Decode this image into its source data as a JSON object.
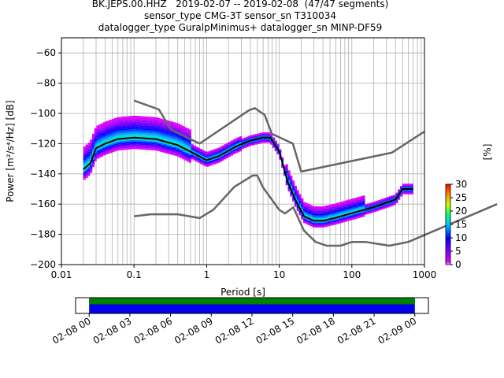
{
  "header": {
    "line1": "BK.JEPS.00.HHZ   2019-02-07 -- 2019-02-08  (47/47 segments)",
    "line2": "sensor_type CMG-3T sensor_sn T310034",
    "line3": "datalogger_type GuralpMinimus+ datalogger_sn MINP-DF59"
  },
  "chart_data": [
    {
      "type": "heatmap",
      "xlabel": "Period [s]",
      "ylabel": "Power [m²/s⁴/Hz] [dB]",
      "x_scale": "log",
      "xlim": [
        0.01,
        1000
      ],
      "ylim": [
        -200,
        -50
      ],
      "xticks": [
        0.01,
        0.1,
        1,
        10,
        100,
        1000
      ],
      "xtick_labels": [
        "0.01",
        "0.1",
        "1",
        "10",
        "100",
        "1000"
      ],
      "yticks": [
        -200,
        -180,
        -160,
        -140,
        -120,
        -100,
        -80,
        -60
      ],
      "ytick_labels": [
        "−200",
        "−180",
        "−160",
        "−140",
        "−120",
        "−100",
        "−80",
        "−60"
      ],
      "grid": true,
      "colorbar": {
        "label": "[%]",
        "range": [
          0,
          30
        ],
        "ticks": [
          0,
          5,
          10,
          15,
          20,
          25,
          30
        ],
        "tick_labels": [
          "0",
          "5",
          "10",
          "15",
          "20",
          "25",
          "30"
        ]
      },
      "series": [
        {
          "kind": "mean",
          "color": "#000000",
          "x": [
            0.02,
            0.025,
            0.03,
            0.04,
            0.06,
            0.1,
            0.2,
            0.4,
            0.7,
            1.0,
            1.5,
            2.5,
            4,
            6,
            7.5,
            10,
            13,
            17,
            22,
            30,
            40,
            60,
            100,
            200,
            400,
            500,
            700
          ],
          "y": [
            -137,
            -133,
            -123,
            -120,
            -117,
            -116,
            -117,
            -121,
            -127,
            -131,
            -128,
            -122,
            -118,
            -116,
            -116,
            -125,
            -145,
            -158,
            -168,
            -171,
            -171,
            -169,
            -166,
            -162,
            -157,
            -150,
            -150
          ]
        },
        {
          "kind": "noise-model-high",
          "color": "#666666",
          "x": [
            0.1,
            0.22,
            0.32,
            0.8,
            3.8,
            4.6,
            6.3,
            7.9,
            15.4,
            20,
            354.8,
            1000
          ],
          "y": [
            -91.5,
            -97.4,
            -110.5,
            -120,
            -98,
            -96.5,
            -101,
            -113.5,
            -120,
            -138.5,
            -126,
            -112
          ]
        },
        {
          "kind": "noise-model-low",
          "color": "#666666",
          "x": [
            0.1,
            0.17,
            0.4,
            0.8,
            1.24,
            2.4,
            4.3,
            5.0,
            6.0,
            10.0,
            12.0,
            15.6,
            21.9,
            31.6,
            45,
            70,
            101,
            154,
            328,
            600,
            10000
          ],
          "y": [
            -168,
            -166.7,
            -166.7,
            -169.2,
            -163.7,
            -148.6,
            -141.1,
            -141.1,
            -149,
            -163.8,
            -166.2,
            -162.1,
            -177.5,
            -185,
            -187.5,
            -187.5,
            -185,
            -185,
            -187.5,
            -185,
            -160
          ]
        }
      ]
    },
    {
      "type": "bar",
      "description_key": "data-coverage",
      "xlim": [
        "2019-02-07T23:00",
        "2019-02-09T01:00"
      ],
      "xticks": [
        "02-08 00",
        "02-08 03",
        "02-08 06",
        "02-08 09",
        "02-08 12",
        "02-08 15",
        "02-08 18",
        "02-08 21",
        "02-09 00"
      ],
      "series": [
        {
          "kind": "data",
          "color": "#0000ee",
          "start": "2019-02-08T00:00",
          "end": "2019-02-09T00:00"
        },
        {
          "kind": "gaps-free",
          "color": "#008000",
          "start": "2019-02-08T00:00",
          "end": "2019-02-09T00:00"
        }
      ]
    }
  ]
}
